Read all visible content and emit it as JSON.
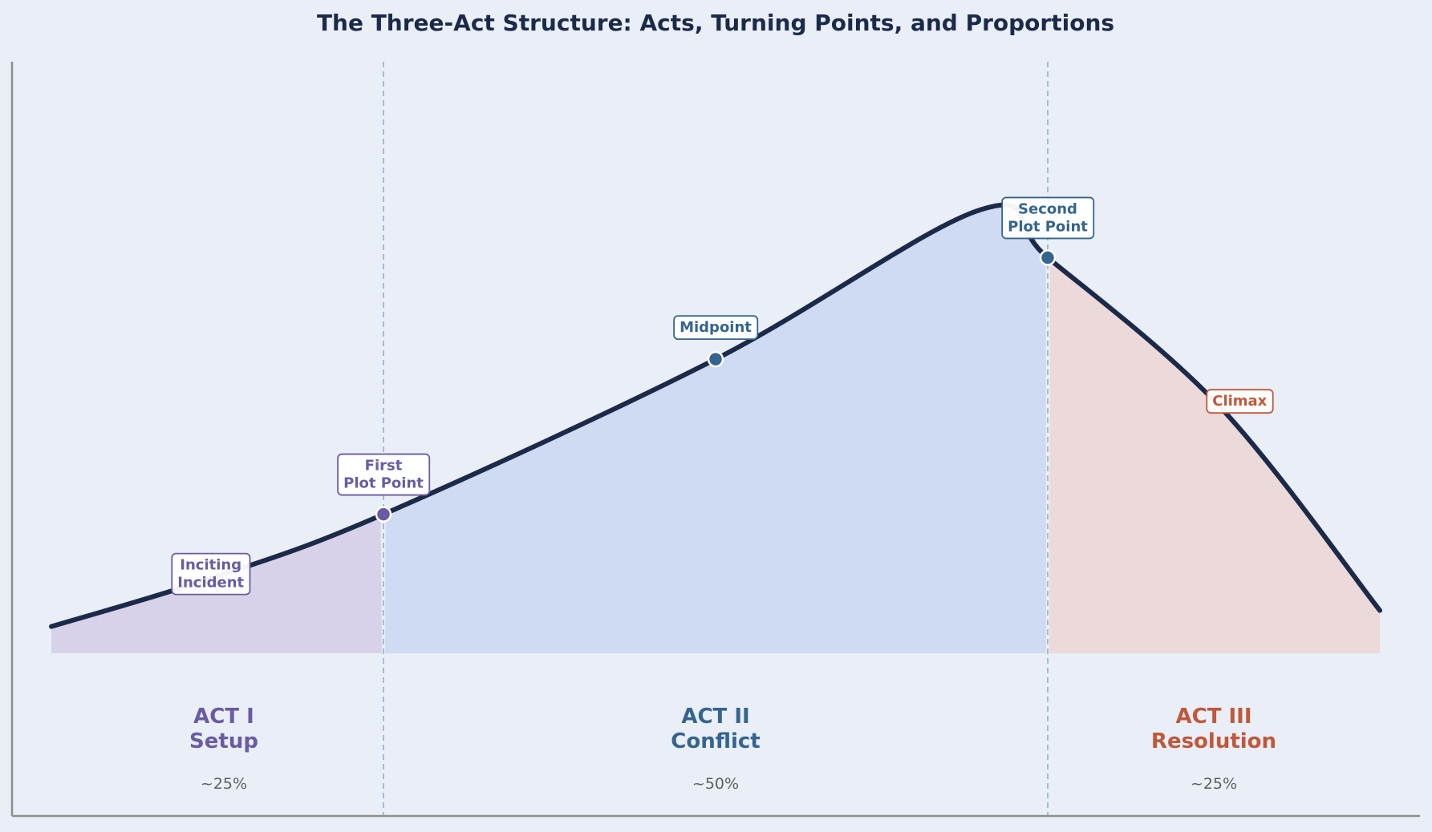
{
  "title": "The Three-Act Structure: Acts, Turning Points, and Proportions",
  "colors": {
    "background": "#e9eef7",
    "curve": "#1c2a4a",
    "act1": "#6a5ba3",
    "act2": "#35648f",
    "act3": "#c0583a",
    "act1_fill": "#d7d2e9",
    "act2_fill": "#cedbf2",
    "act3_fill": "#ecd9d9",
    "divider": "#a5bccf",
    "axis": "#8f8f8f",
    "percent_text": "#5e5e5e"
  },
  "acts": [
    {
      "name": "ACT I",
      "subtitle": "Setup",
      "percent": "~25%",
      "share": 0.25
    },
    {
      "name": "ACT II",
      "subtitle": "Conflict",
      "percent": "~50%",
      "share": 0.5
    },
    {
      "name": "ACT III",
      "subtitle": "Resolution",
      "percent": "~25%",
      "share": 0.25
    }
  ],
  "turning_points": [
    {
      "label_line1": "Inciting",
      "label_line2": "Incident",
      "act": 1,
      "position": 0.12,
      "tension": 0.14,
      "marker": false
    },
    {
      "label_line1": "First",
      "label_line2": "Plot Point",
      "act": 1,
      "position": 0.25,
      "tension": 0.26,
      "marker": true
    },
    {
      "label_line1": "Midpoint",
      "label_line2": "",
      "act": 2,
      "position": 0.5,
      "tension": 0.55,
      "marker": true
    },
    {
      "label_line1": "Second",
      "label_line2": "Plot Point",
      "act": 2,
      "position": 0.75,
      "tension": 0.74,
      "marker": true
    },
    {
      "label_line1": "Climax",
      "label_line2": "",
      "act": 3,
      "position": 0.88,
      "tension": 0.46,
      "marker": false
    }
  ],
  "curve": {
    "peak_position": 0.7,
    "peak_tension": 0.83,
    "start_tension": 0.05,
    "end_tension": 0.08
  }
}
